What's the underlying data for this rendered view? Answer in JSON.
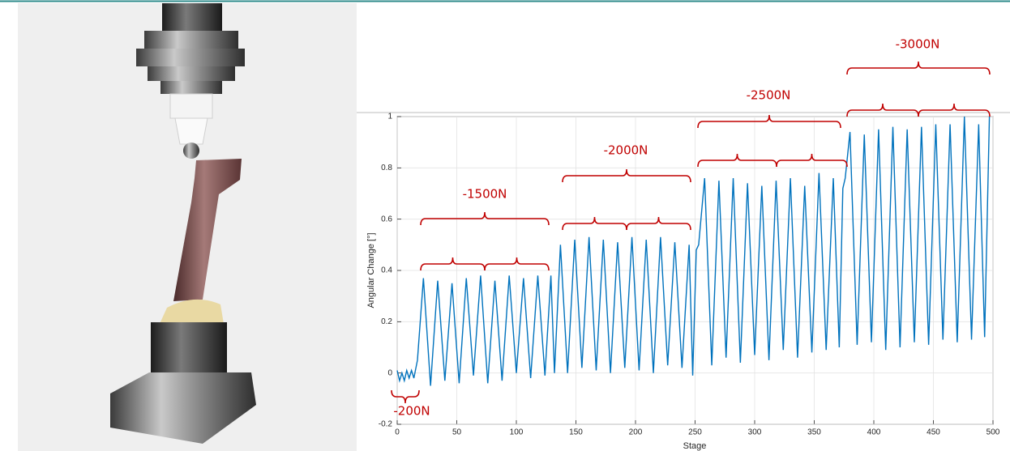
{
  "chart_data": {
    "type": "line",
    "xlabel": "Stage",
    "ylabel": "Angular Change [°]",
    "x": [
      0,
      2,
      4,
      6,
      8,
      10,
      12,
      14,
      17,
      22,
      28,
      34,
      40,
      46,
      52,
      58,
      64,
      70,
      76,
      82,
      88,
      94,
      100,
      106,
      112,
      118,
      124,
      129,
      132,
      137,
      143,
      149,
      155,
      161,
      167,
      173,
      179,
      185,
      191,
      197,
      203,
      209,
      215,
      221,
      227,
      233,
      239,
      245,
      248,
      251,
      253,
      258,
      264,
      270,
      276,
      282,
      288,
      294,
      300,
      306,
      312,
      318,
      324,
      330,
      336,
      342,
      348,
      354,
      360,
      366,
      371,
      374,
      376,
      380,
      386,
      392,
      398,
      404,
      410,
      416,
      422,
      428,
      434,
      440,
      446,
      452,
      458,
      464,
      470,
      476,
      482,
      488,
      493,
      497
    ],
    "values": [
      0.01,
      -0.03,
      0,
      -0.03,
      0.01,
      -0.02,
      0.01,
      -0.02,
      0.05,
      0.37,
      -0.05,
      0.36,
      -0.03,
      0.35,
      -0.04,
      0.37,
      -0.01,
      0.38,
      -0.04,
      0.36,
      -0.03,
      0.38,
      0,
      0.37,
      -0.02,
      0.38,
      -0.01,
      0.38,
      0,
      0.5,
      0,
      0.52,
      0.02,
      0.53,
      0.01,
      0.52,
      0,
      0.51,
      0.02,
      0.53,
      0.01,
      0.52,
      0,
      0.53,
      0.03,
      0.51,
      0.02,
      0.5,
      -0.01,
      0.48,
      0.5,
      0.76,
      0.03,
      0.75,
      0.06,
      0.76,
      0.04,
      0.74,
      0.07,
      0.73,
      0.05,
      0.75,
      0.09,
      0.76,
      0.06,
      0.73,
      0.08,
      0.78,
      0.09,
      0.76,
      0.1,
      0.72,
      0.76,
      0.94,
      0.11,
      0.93,
      0.12,
      0.95,
      0.09,
      0.96,
      0.1,
      0.95,
      0.12,
      0.96,
      0.11,
      0.97,
      0.13,
      0.97,
      0.12,
      1.0,
      0.13,
      0.97,
      0.14,
      1.0
    ],
    "color": "#0072bd",
    "xlim": [
      0,
      500
    ],
    "ylim": [
      -0.2,
      1
    ],
    "xticks": [
      0,
      50,
      100,
      150,
      200,
      250,
      300,
      350,
      400,
      450,
      500
    ],
    "yticks": [
      -0.2,
      0,
      0.2,
      0.4,
      0.6,
      0.8,
      1
    ],
    "grid": true,
    "annotations": [
      "-200N",
      "-1500N",
      "-2000N",
      "-2500N",
      "-3000N"
    ],
    "annotation_color": "#c00000"
  }
}
